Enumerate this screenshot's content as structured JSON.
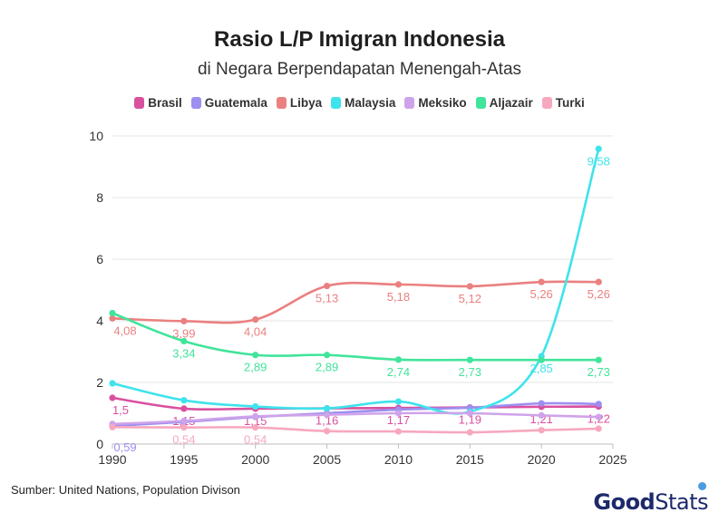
{
  "chart_data": {
    "type": "line",
    "title": "Rasio L/P Imigran Indonesia",
    "subtitle": "di Negara Berpendapatan Menengah-Atas",
    "xlim": [
      1990,
      2025
    ],
    "ylim": [
      0,
      10
    ],
    "x_ticks": [
      "1990",
      "1995",
      "2000",
      "2005",
      "2010",
      "2015",
      "2020",
      "2025"
    ],
    "y_ticks": [
      "0",
      "2",
      "4",
      "6",
      "8",
      "10"
    ],
    "x": [
      1990,
      1995,
      2000,
      2005,
      2010,
      2015,
      2020,
      2024
    ],
    "grid": true,
    "legend_position": "top",
    "series": [
      {
        "name": "Brasil",
        "color": "#d9509f",
        "values": [
          1.5,
          1.15,
          1.15,
          1.16,
          1.17,
          1.19,
          1.21,
          1.22
        ],
        "labels": [
          "1,5",
          "1,15",
          "1,15",
          "1,16",
          "1,17",
          "1,19",
          "1,21",
          "1,22"
        ]
      },
      {
        "name": "Guatemala",
        "color": "#9c8ff0",
        "values": [
          0.59,
          0.72,
          0.88,
          1.0,
          1.12,
          1.18,
          1.32,
          1.3
        ],
        "labels": [
          "0,59",
          "",
          "",
          "",
          "",
          "",
          "",
          ""
        ]
      },
      {
        "name": "Libya",
        "color": "#ea8080",
        "values": [
          4.08,
          3.99,
          4.04,
          5.13,
          5.18,
          5.12,
          5.26,
          5.26
        ],
        "labels": [
          "4,08",
          "3,99",
          "4,04",
          "5,13",
          "5,18",
          "5,12",
          "5,26",
          "5,26"
        ]
      },
      {
        "name": "Malaysia",
        "color": "#3fe3ec",
        "values": [
          1.97,
          1.42,
          1.22,
          1.16,
          1.38,
          1.05,
          2.85,
          9.58
        ],
        "labels": [
          "",
          "",
          "",
          "",
          "",
          "",
          "2,85",
          "9,58"
        ]
      },
      {
        "name": "Meksiko",
        "color": "#cfa3ea",
        "values": [
          0.65,
          0.75,
          0.9,
          0.95,
          1.0,
          1.0,
          0.93,
          0.88
        ],
        "labels": [
          "",
          "",
          "",
          "",
          "",
          "",
          "",
          ""
        ]
      },
      {
        "name": "Aljazair",
        "color": "#40e49a",
        "values": [
          4.25,
          3.34,
          2.89,
          2.89,
          2.74,
          2.73,
          2.73,
          2.73
        ],
        "labels": [
          "",
          "3,34",
          "2,89",
          "2,89",
          "2,74",
          "2,73",
          "",
          "2,73"
        ]
      },
      {
        "name": "Turki",
        "color": "#f7a8bf",
        "values": [
          0.55,
          0.54,
          0.54,
          0.42,
          0.41,
          0.38,
          0.45,
          0.5
        ],
        "labels": [
          "",
          "0,54",
          "0,54",
          "",
          "",
          "",
          "",
          ""
        ]
      }
    ]
  },
  "footer": {
    "source": "Sumber: United Nations, Population Divison",
    "brand_bold": "Good",
    "brand_light": "Stats"
  }
}
